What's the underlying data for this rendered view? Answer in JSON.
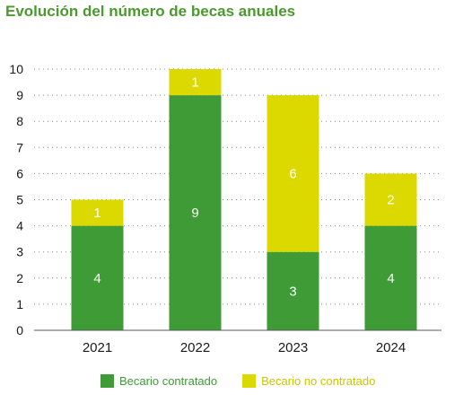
{
  "chart_data": {
    "type": "bar",
    "stacked": true,
    "title": "Evolución del número de becas anuales",
    "xlabel": "",
    "ylabel": "",
    "categories": [
      "2021",
      "2022",
      "2023",
      "2024"
    ],
    "series": [
      {
        "name": "Becario contratado",
        "values": [
          4,
          9,
          3,
          4
        ],
        "color": "#3e9b35"
      },
      {
        "name": "Becario no contratado",
        "values": [
          1,
          1,
          6,
          2
        ],
        "color": "#dcd900"
      }
    ],
    "ylim": [
      0,
      10
    ],
    "yticks": [
      "0",
      "1",
      "2",
      "3",
      "4",
      "5",
      "6",
      "7",
      "8",
      "9",
      "10"
    ],
    "grid": true,
    "legend": "bottom",
    "colors": {
      "title": "#4a9a2e",
      "contratado_text": "#3e9b35",
      "no_contratado_text": "#c9c600"
    }
  }
}
